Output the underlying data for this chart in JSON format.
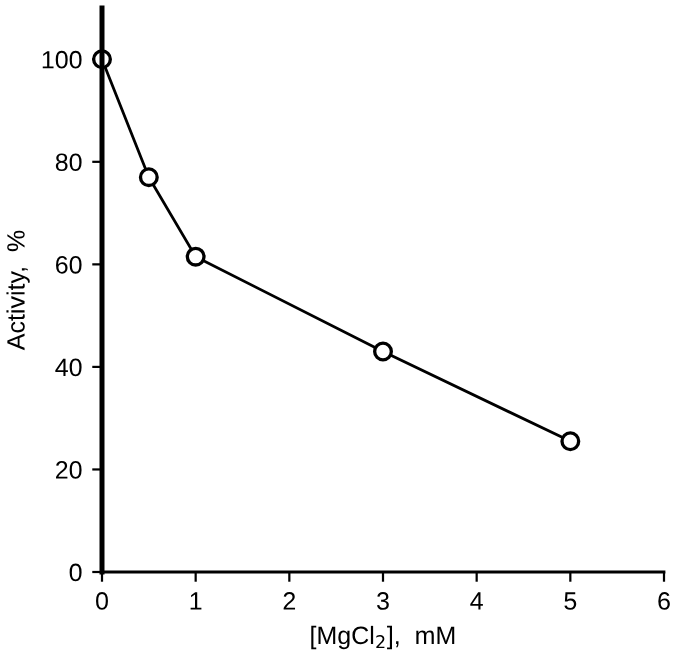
{
  "chart_data": {
    "type": "line",
    "xlabel": "[MgCl$_{2}$],  mM",
    "ylabel": "Activity,  %",
    "x": [
      0,
      0.5,
      1,
      3,
      5
    ],
    "series": [
      {
        "color": "#000000",
        "values": [
          100,
          77,
          61.5,
          43,
          25.5
        ]
      }
    ],
    "xlim": [
      0,
      6
    ],
    "xticks": [
      0,
      1,
      2,
      3,
      4,
      5,
      6
    ],
    "ylim": [
      0,
      110
    ],
    "yticks": [
      0,
      20,
      40,
      60,
      80,
      100
    ],
    "marker": "circle",
    "line_style": "solid",
    "grid": false
  }
}
